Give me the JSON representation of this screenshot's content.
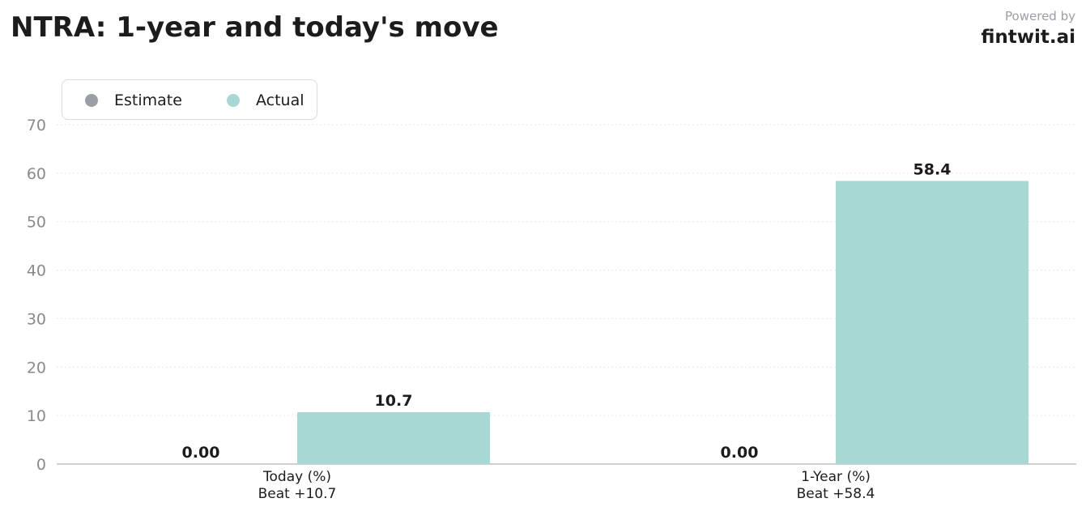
{
  "title": "NTRA: 1-year and today's move",
  "brand": {
    "powered": "Powered by",
    "name": "fintwit.ai"
  },
  "colors": {
    "estimate": "#9a9ea6",
    "actual": "#a8d8d4",
    "grid": "#e6e6e6",
    "axis": "#bdbdbd"
  },
  "chart_data": {
    "type": "bar",
    "categories": [
      "Today (%)",
      "1-Year (%)"
    ],
    "category_sublabels": [
      "Beat +10.7",
      "Beat +58.4"
    ],
    "series": [
      {
        "name": "Estimate",
        "values": [
          0.0,
          0.0
        ],
        "labels": [
          "0.00",
          "0.00"
        ]
      },
      {
        "name": "Actual",
        "values": [
          10.7,
          58.4
        ],
        "labels": [
          "10.7",
          "58.4"
        ]
      }
    ],
    "ylim": [
      0,
      70
    ],
    "yticks": [
      0,
      10,
      20,
      30,
      40,
      50,
      60,
      70
    ],
    "grid": true,
    "legend": "top-left"
  }
}
